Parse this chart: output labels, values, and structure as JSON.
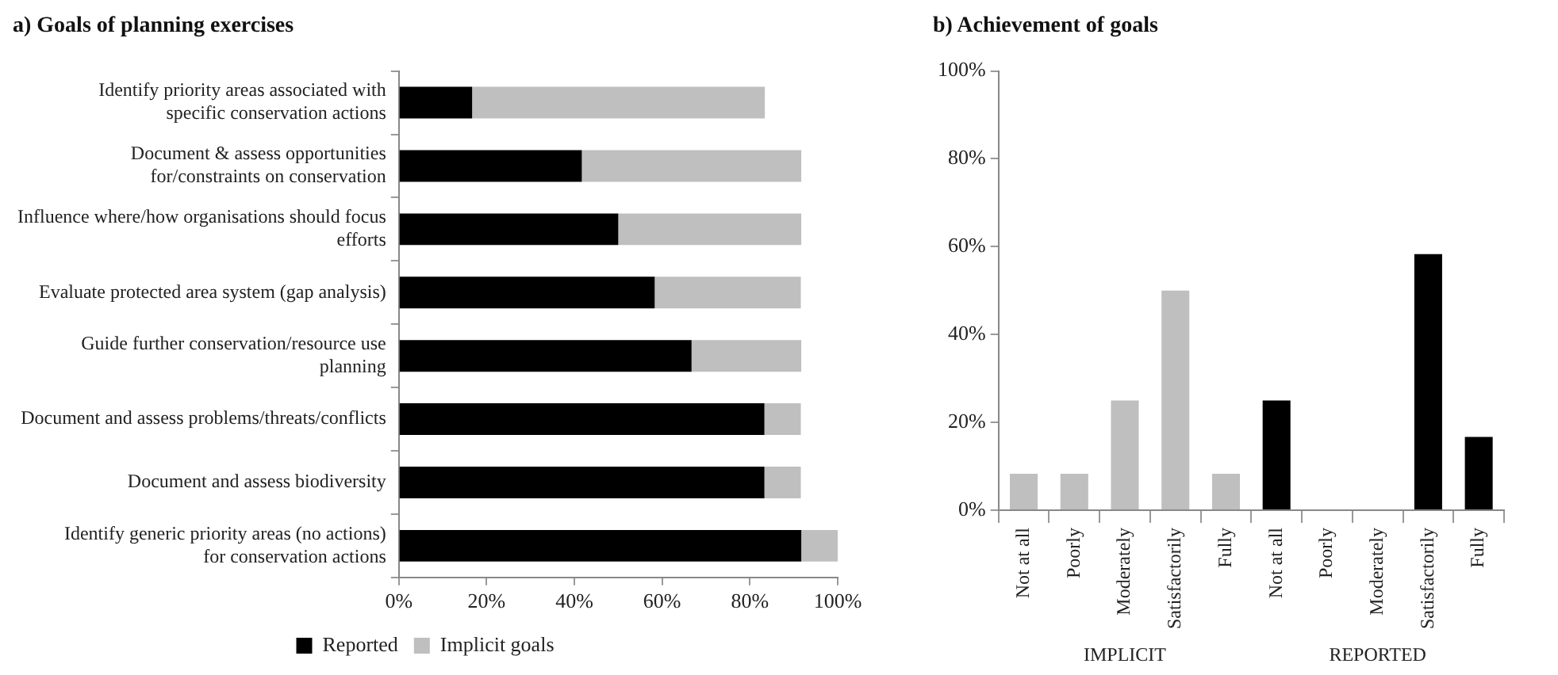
{
  "chart_data": [
    {
      "type": "bar",
      "title": "a) Goals of planning exercises",
      "orientation": "horizontal",
      "stacked": true,
      "categories": [
        "Identify priority areas associated with specific conservation actions",
        "Document & assess opportunities for/constraints on conservation",
        "Influence where/how organisations should focus efforts",
        "Evaluate protected area system (gap analysis)",
        "Guide further conservation/resource use planning",
        "Document and assess problems/threats/conflicts",
        "Document and assess biodiversity",
        "Identify generic priority areas (no actions) for conservation actions"
      ],
      "series": [
        {
          "name": "Reported",
          "color": "#000000",
          "values": [
            16.7,
            41.7,
            50,
            58.3,
            66.7,
            83.3,
            83.3,
            91.7
          ]
        },
        {
          "name": "Implicit goals",
          "color": "#bfbfbf",
          "values": [
            66.7,
            50,
            41.7,
            33.3,
            25,
            8.3,
            8.3,
            8.3
          ]
        }
      ],
      "xlim": [
        0,
        100
      ],
      "xticks": [
        {
          "value": 0,
          "label": "0%"
        },
        {
          "value": 20,
          "label": "20%"
        },
        {
          "value": 40,
          "label": "40%"
        },
        {
          "value": 60,
          "label": "60%"
        },
        {
          "value": 80,
          "label": "80%"
        },
        {
          "value": 100,
          "label": "100%"
        }
      ],
      "grid": false,
      "legend": "bottom"
    },
    {
      "type": "bar",
      "title": "b) Achievement of goals",
      "categories": [
        "Not at all",
        "Poorly",
        "Moderately",
        "Satisfactorily",
        "Fully",
        "Not at all",
        "Poorly",
        "Moderately",
        "Satisfactorily",
        "Fully"
      ],
      "values": [
        8.3,
        8.3,
        25,
        50,
        8.3,
        25,
        0,
        0,
        58.3,
        16.7
      ],
      "colors": [
        "#bfbfbf",
        "#bfbfbf",
        "#bfbfbf",
        "#bfbfbf",
        "#bfbfbf",
        "#000000",
        "#000000",
        "#000000",
        "#000000",
        "#000000"
      ],
      "ylim": [
        0,
        100
      ],
      "yticks": [
        {
          "value": 0,
          "label": "0%"
        },
        {
          "value": 20,
          "label": "20%"
        },
        {
          "value": 40,
          "label": "40%"
        },
        {
          "value": 60,
          "label": "60%"
        },
        {
          "value": 80,
          "label": "80%"
        },
        {
          "value": 100,
          "label": "100%"
        }
      ],
      "grid": false,
      "legend": false,
      "annotations": [
        "IMPLICIT",
        "REPORTED"
      ]
    }
  ]
}
